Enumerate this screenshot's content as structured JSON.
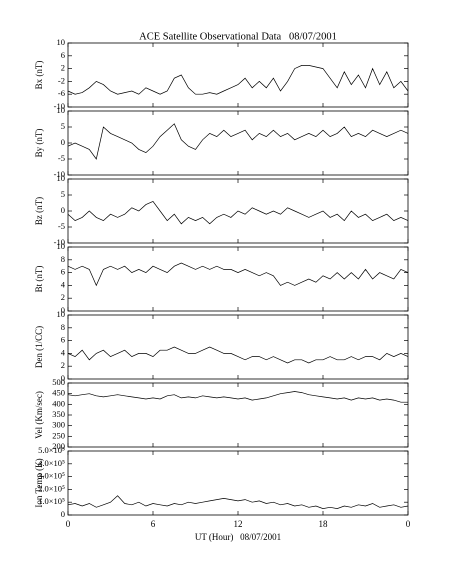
{
  "chart_data": {
    "type": "line",
    "title": "ACE Satellite Observational Data   08/07/2001",
    "xlabel": "UT (Hour)   08/07/2001",
    "xlim": [
      0,
      24
    ],
    "xticks": [
      0,
      6,
      12,
      18,
      {
        "value": 24,
        "label": "0"
      }
    ],
    "x": [
      0,
      0.5,
      1,
      1.5,
      2,
      2.5,
      3,
      3.5,
      4,
      4.5,
      5,
      5.5,
      6,
      6.5,
      7,
      7.5,
      8,
      8.5,
      9,
      9.5,
      10,
      10.5,
      11,
      11.5,
      12,
      12.5,
      13,
      13.5,
      14,
      14.5,
      15,
      15.5,
      16,
      16.5,
      17,
      17.5,
      18,
      18.5,
      19,
      19.5,
      20,
      20.5,
      21,
      21.5,
      22,
      22.5,
      23,
      23.5,
      24
    ],
    "panels": [
      {
        "ylabel": "Bx (nT)",
        "ylim": [
          -10,
          10
        ],
        "yticks": [
          -10,
          -6,
          -2,
          2,
          6,
          10
        ],
        "values": [
          -5,
          -6,
          -5.5,
          -4,
          -2,
          -3,
          -5,
          -6,
          -5.5,
          -5,
          -6,
          -4,
          -5,
          -6,
          -5,
          -1,
          0,
          -4,
          -6,
          -6,
          -5.5,
          -6,
          -5,
          -4,
          -3,
          -1,
          -4,
          -2,
          -4,
          -1,
          -5,
          -2,
          2,
          3,
          3,
          2.5,
          2,
          -1,
          -4,
          1,
          -3,
          0,
          -4,
          2,
          -3,
          1,
          -4,
          -2,
          -5
        ]
      },
      {
        "ylabel": "By (nT)",
        "ylim": [
          -10,
          10
        ],
        "yticks": [
          -10,
          -5,
          0,
          5,
          10
        ],
        "values": [
          -1,
          0,
          -1,
          -2,
          -5,
          5,
          3,
          2,
          1,
          0,
          -2,
          -3,
          -1,
          2,
          4,
          6,
          1,
          -1,
          -2,
          1,
          3,
          2,
          4,
          2,
          3,
          4,
          1,
          3,
          2,
          4,
          2,
          3,
          1,
          2,
          3,
          2,
          4,
          2,
          3,
          5,
          2,
          3,
          2,
          4,
          3,
          2,
          3,
          4,
          3
        ]
      },
      {
        "ylabel": "Bz (nT)",
        "ylim": [
          -10,
          10
        ],
        "yticks": [
          -10,
          -5,
          0,
          5,
          10
        ],
        "values": [
          -1,
          -3,
          -2,
          0,
          -2,
          -3,
          -1,
          -2,
          -1,
          1,
          0,
          2,
          3,
          0,
          -3,
          -1,
          -4,
          -2,
          -3,
          -2,
          -4,
          -2,
          -1,
          -2,
          0,
          -1,
          1,
          0,
          -1,
          0,
          -1,
          1,
          0,
          -1,
          -2,
          -1,
          0,
          -2,
          -1,
          -3,
          0,
          -2,
          -1,
          -3,
          -2,
          -1,
          -3,
          -2,
          -3
        ]
      },
      {
        "ylabel": "Bt (nT)",
        "ylim": [
          0,
          10
        ],
        "yticks": [
          0,
          2,
          4,
          6,
          8,
          10
        ],
        "values": [
          7,
          6.5,
          7,
          6.5,
          4,
          6.5,
          7,
          6.5,
          7,
          6,
          6.5,
          6,
          7,
          6.5,
          6,
          7,
          7.5,
          7,
          6.5,
          7,
          6.5,
          7,
          6.5,
          6.5,
          6,
          6.5,
          6,
          5.5,
          6,
          5.5,
          4,
          4.5,
          4,
          4.5,
          5,
          4.5,
          5.5,
          5,
          6,
          5,
          6,
          5,
          6.5,
          5,
          6,
          5.5,
          5,
          6.5,
          6
        ]
      },
      {
        "ylabel": "Den (1/CC)",
        "ylim": [
          0,
          10
        ],
        "yticks": [
          0,
          2,
          4,
          6,
          8,
          10
        ],
        "values": [
          4,
          3.5,
          4.5,
          3,
          4,
          4.5,
          3.5,
          4,
          4.5,
          3.5,
          4,
          4,
          3.5,
          4.5,
          4.5,
          5,
          4.5,
          4,
          4,
          4.5,
          5,
          4.5,
          4,
          4,
          3.5,
          3,
          3.5,
          3.5,
          3,
          3.5,
          3,
          2.5,
          3,
          3,
          2.5,
          3,
          3,
          3.5,
          3,
          3,
          3.5,
          3,
          3.5,
          3.5,
          3,
          4,
          3.5,
          4,
          3.5
        ]
      },
      {
        "ylabel": "Vel (Km/sec)",
        "ylim": [
          200,
          500
        ],
        "yticks": [
          200,
          250,
          300,
          350,
          400,
          450,
          500
        ],
        "values": [
          445,
          440,
          445,
          450,
          440,
          435,
          440,
          445,
          440,
          435,
          430,
          425,
          430,
          425,
          440,
          445,
          430,
          435,
          430,
          440,
          435,
          430,
          435,
          430,
          425,
          430,
          420,
          425,
          430,
          440,
          450,
          455,
          460,
          455,
          445,
          440,
          435,
          430,
          425,
          430,
          420,
          430,
          425,
          430,
          420,
          425,
          420,
          410,
          410
        ]
      },
      {
        "ylabel": "Ion Temp (K)",
        "ylim": [
          0,
          500000
        ],
        "yticks": [
          0,
          {
            "value": 100000,
            "label": "1.0×10⁵"
          },
          {
            "value": 200000,
            "label": "2.0×10⁵"
          },
          {
            "value": 300000,
            "label": "3.0×10⁵"
          },
          {
            "value": 400000,
            "label": "4.0×10⁵"
          },
          {
            "value": 500000,
            "label": "5.0×10⁵"
          }
        ],
        "values": [
          80000,
          90000,
          70000,
          90000,
          60000,
          80000,
          100000,
          150000,
          90000,
          80000,
          100000,
          70000,
          90000,
          80000,
          70000,
          90000,
          80000,
          100000,
          90000,
          100000,
          110000,
          120000,
          130000,
          120000,
          110000,
          120000,
          100000,
          110000,
          90000,
          100000,
          80000,
          90000,
          70000,
          80000,
          60000,
          70000,
          50000,
          60000,
          50000,
          70000,
          60000,
          80000,
          70000,
          90000,
          60000,
          70000,
          80000,
          60000,
          70000
        ]
      }
    ]
  }
}
